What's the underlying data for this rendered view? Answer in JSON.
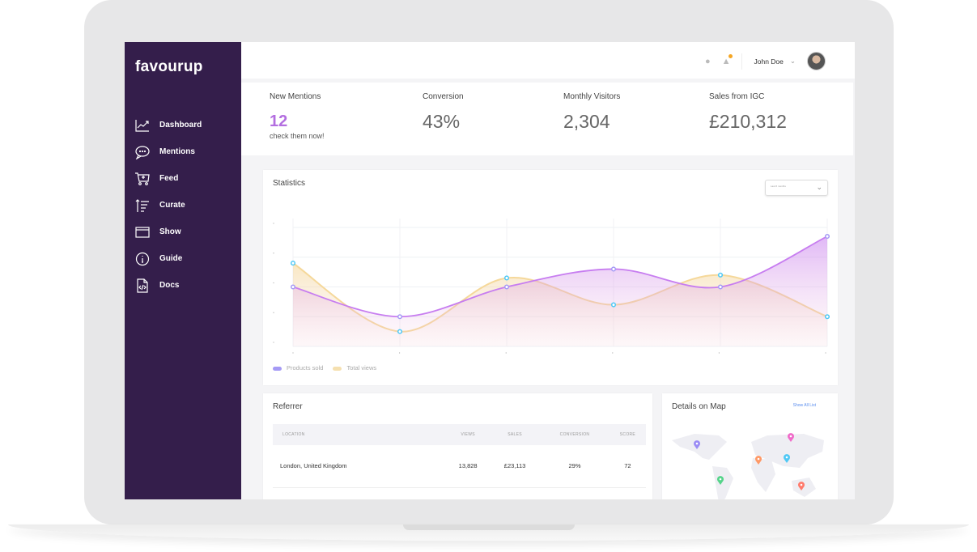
{
  "app": {
    "logo": "favourup"
  },
  "sidebar": {
    "items": [
      {
        "label": "Dashboard",
        "icon": "chart-line-icon"
      },
      {
        "label": "Mentions",
        "icon": "chat-bubble-icon"
      },
      {
        "label": "Feed",
        "icon": "cart-icon"
      },
      {
        "label": "Curate",
        "icon": "sort-icon"
      },
      {
        "label": "Show",
        "icon": "browser-window-icon"
      },
      {
        "label": "Guide",
        "icon": "info-icon"
      },
      {
        "label": "Docs",
        "icon": "code-file-icon"
      }
    ]
  },
  "header": {
    "user_name": "John Doe",
    "icons": [
      "chat-icon",
      "bell-icon",
      "chevron-down-icon",
      "avatar"
    ],
    "notification_color": "#f5a623"
  },
  "stats": [
    {
      "label": "New Mentions",
      "value": "12",
      "sub": "check them now!",
      "color": "#b36ee0"
    },
    {
      "label": "Conversion",
      "value": "43%"
    },
    {
      "label": "Monthly Visitors",
      "value": "2,304"
    },
    {
      "label": "Sales from IGC",
      "value": "£210,312"
    }
  ],
  "statistics": {
    "title": "Statistics",
    "range_select": "Last 6 months"
  },
  "chart_data": {
    "type": "area",
    "x": [
      1,
      2,
      3,
      4,
      5,
      6
    ],
    "ylim": [
      0,
      4
    ],
    "grid": true,
    "legend": "bottom-left",
    "series": [
      {
        "name": "Products sold",
        "values": [
          2.0,
          1.0,
          2.0,
          2.6,
          2.0,
          3.7
        ],
        "color": "#c77df0"
      },
      {
        "name": "Total views",
        "values": [
          2.8,
          0.5,
          2.3,
          1.4,
          2.4,
          1.0
        ],
        "color": "#f5d89a"
      }
    ]
  },
  "referrer": {
    "title": "Referrer",
    "columns": [
      "LOCATION",
      "VIEWS",
      "SALES",
      "CONVERSION",
      "SCORE"
    ],
    "rows": [
      [
        "London, United Kingdom",
        "13,828",
        "£23,113",
        "29%",
        "72"
      ]
    ]
  },
  "map": {
    "title": "Details on Map",
    "link": "Show All List",
    "pins": [
      "#9b8cf5",
      "#f06bc9",
      "#ff9966",
      "#4fc8f5",
      "#55d48a",
      "#ff7a6b"
    ]
  }
}
